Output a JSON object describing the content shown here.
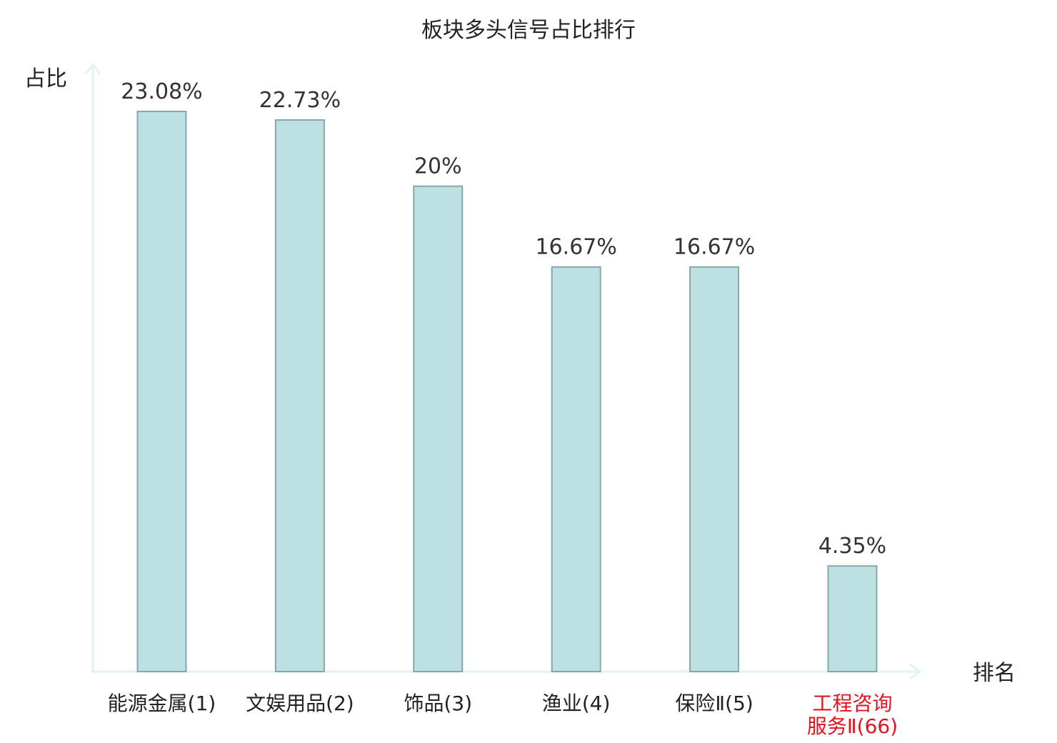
{
  "chart_data": {
    "type": "bar",
    "title": "板块多头信号占比排行",
    "ylabel": "占比",
    "xlabel": "排名",
    "ylim": [
      0,
      25
    ],
    "grid": false,
    "categories": [
      {
        "lines": [
          "能源金属(1)"
        ],
        "highlight": false
      },
      {
        "lines": [
          "文娱用品(2)"
        ],
        "highlight": false
      },
      {
        "lines": [
          "饰品(3)"
        ],
        "highlight": false
      },
      {
        "lines": [
          "渔业(4)"
        ],
        "highlight": false
      },
      {
        "lines": [
          "保险Ⅱ(5)"
        ],
        "highlight": false
      },
      {
        "lines": [
          "工程咨询",
          "服务Ⅱ(66)"
        ],
        "highlight": true
      }
    ],
    "values": [
      23.08,
      22.73,
      20,
      16.67,
      16.67,
      4.35
    ],
    "value_labels": [
      "23.08%",
      "22.73%",
      "20%",
      "16.67%",
      "16.67%",
      "4.35%"
    ],
    "colors": {
      "bar_fill": "#bde0e2",
      "bar_stroke": "#86a8aa",
      "axis": "#e2f3f1",
      "label_normal": "#222222",
      "label_highlight": "#e0141e"
    }
  }
}
